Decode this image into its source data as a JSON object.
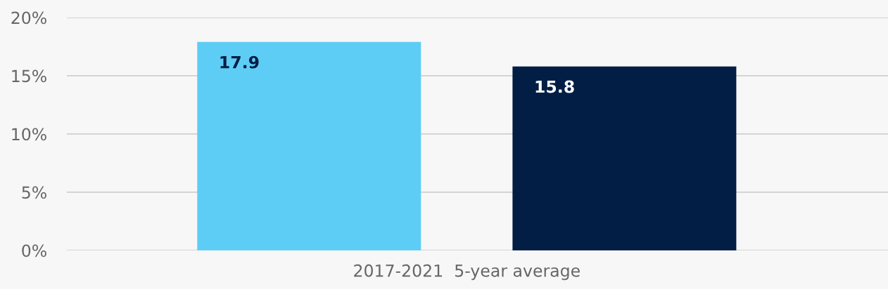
{
  "chart_data": {
    "type": "bar",
    "categories": [
      "2017-2021  5-year average"
    ],
    "series": [
      {
        "color": "#5ecdf5",
        "values": [
          17.9
        ]
      },
      {
        "color": "#031e45",
        "values": [
          15.8
        ]
      }
    ],
    "ylim": [
      0,
      20
    ],
    "yticks": [
      {
        "value": 0,
        "label": "0%"
      },
      {
        "value": 5,
        "label": "5%"
      },
      {
        "value": 10,
        "label": "10%"
      },
      {
        "value": 15,
        "label": "15%"
      },
      {
        "value": 20,
        "label": "20%"
      }
    ],
    "grid": "y",
    "data_labels": true
  }
}
